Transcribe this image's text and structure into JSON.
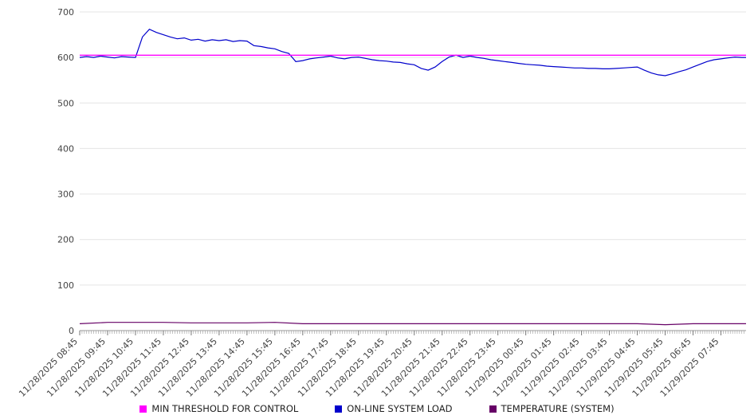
{
  "chart_data": {
    "type": "line",
    "title": "",
    "xlabel": "",
    "ylabel": "",
    "ylim": [
      0,
      700
    ],
    "y_ticks": [
      0,
      100,
      200,
      300,
      400,
      500,
      600,
      700
    ],
    "grid": "horizontal",
    "legend_position": "bottom",
    "x_tick_labels": [
      "11/28/2025 08:45",
      "11/28/2025 09:45",
      "11/28/2025 10:45",
      "11/28/2025 11:45",
      "11/28/2025 12:45",
      "11/28/2025 13:45",
      "11/28/2025 14:45",
      "11/28/2025 15:45",
      "11/28/2025 16:45",
      "11/28/2025 17:45",
      "11/28/2025 18:45",
      "11/28/2025 19:45",
      "11/28/2025 20:45",
      "11/28/2025 21:45",
      "11/28/2025 22:45",
      "11/28/2025 23:45",
      "11/29/2025 00:45",
      "11/29/2025 01:45",
      "11/29/2025 02:45",
      "11/29/2025 03:45",
      "11/29/2025 04:45",
      "11/29/2025 05:45",
      "11/29/2025 06:45",
      "11/29/2025 07:45"
    ],
    "series": [
      {
        "name": "MIN THRESHOLD FOR CONTROL",
        "color": "#FF00FF",
        "constant": 605,
        "width": 1.4
      },
      {
        "name": "ON-LINE SYSTEM LOAD",
        "color": "#0000CC",
        "interval_hours": 0.25,
        "width": 1.2,
        "values": [
          600,
          602,
          600,
          603,
          601,
          599,
          602,
          601,
          600,
          645,
          662,
          655,
          650,
          645,
          641,
          643,
          638,
          640,
          636,
          639,
          637,
          639,
          635,
          637,
          636,
          626,
          624,
          621,
          619,
          613,
          609,
          591,
          593,
          597,
          599,
          601,
          603,
          599,
          597,
          600,
          601,
          598,
          595,
          593,
          592,
          590,
          589,
          586,
          584,
          576,
          572,
          579,
          591,
          601,
          605,
          600,
          603,
          600,
          598,
          595,
          593,
          591,
          589,
          587,
          585,
          584,
          583,
          581,
          580,
          579,
          578,
          577,
          577,
          576,
          576,
          575,
          575,
          576,
          577,
          578,
          579,
          572,
          566,
          562,
          560,
          564,
          569,
          573,
          579,
          585,
          591,
          595,
          597,
          599,
          601,
          600
        ]
      },
      {
        "name": "TEMPERATURE (SYSTEM)",
        "color": "#660066",
        "interval_hours": 1,
        "width": 1.2,
        "values": [
          15,
          18,
          18,
          18,
          17,
          17,
          17,
          18,
          15,
          15,
          15,
          15,
          15,
          15,
          15,
          15,
          15,
          15,
          15,
          15,
          15,
          13,
          15,
          15
        ]
      }
    ]
  }
}
